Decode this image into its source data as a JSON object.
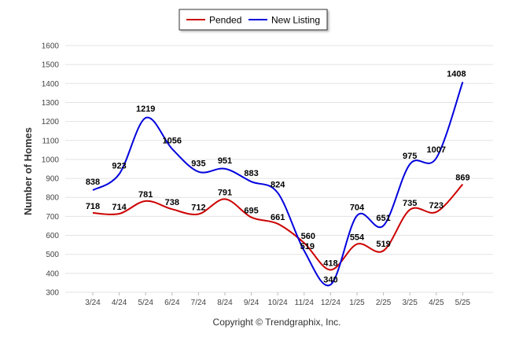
{
  "chart_data": {
    "type": "line",
    "title": "",
    "xlabel": "",
    "ylabel": "Number of Homes",
    "ylim": [
      300,
      1600
    ],
    "yticks": [
      300,
      400,
      500,
      600,
      700,
      800,
      900,
      1000,
      1100,
      1200,
      1300,
      1400,
      1500,
      1600
    ],
    "grid": true,
    "legend_position": "top-center",
    "categories": [
      "3/24",
      "4/24",
      "5/24",
      "6/24",
      "7/24",
      "8/24",
      "9/24",
      "10/24",
      "11/24",
      "12/24",
      "1/25",
      "2/25",
      "3/25",
      "4/25",
      "5/25"
    ],
    "series": [
      {
        "name": "Pended",
        "color": "#cc0000",
        "values": [
          718,
          714,
          781,
          738,
          712,
          791,
          695,
          661,
          560,
          418,
          554,
          519,
          735,
          723,
          869
        ]
      },
      {
        "name": "New Listing",
        "color": "#0000dd",
        "values": [
          838,
          923,
          1219,
          1056,
          935,
          951,
          883,
          824,
          519,
          340,
          704,
          651,
          975,
          1007,
          1408
        ]
      }
    ]
  },
  "footer": {
    "copyright": "Copyright © Trendgraphix, Inc."
  }
}
